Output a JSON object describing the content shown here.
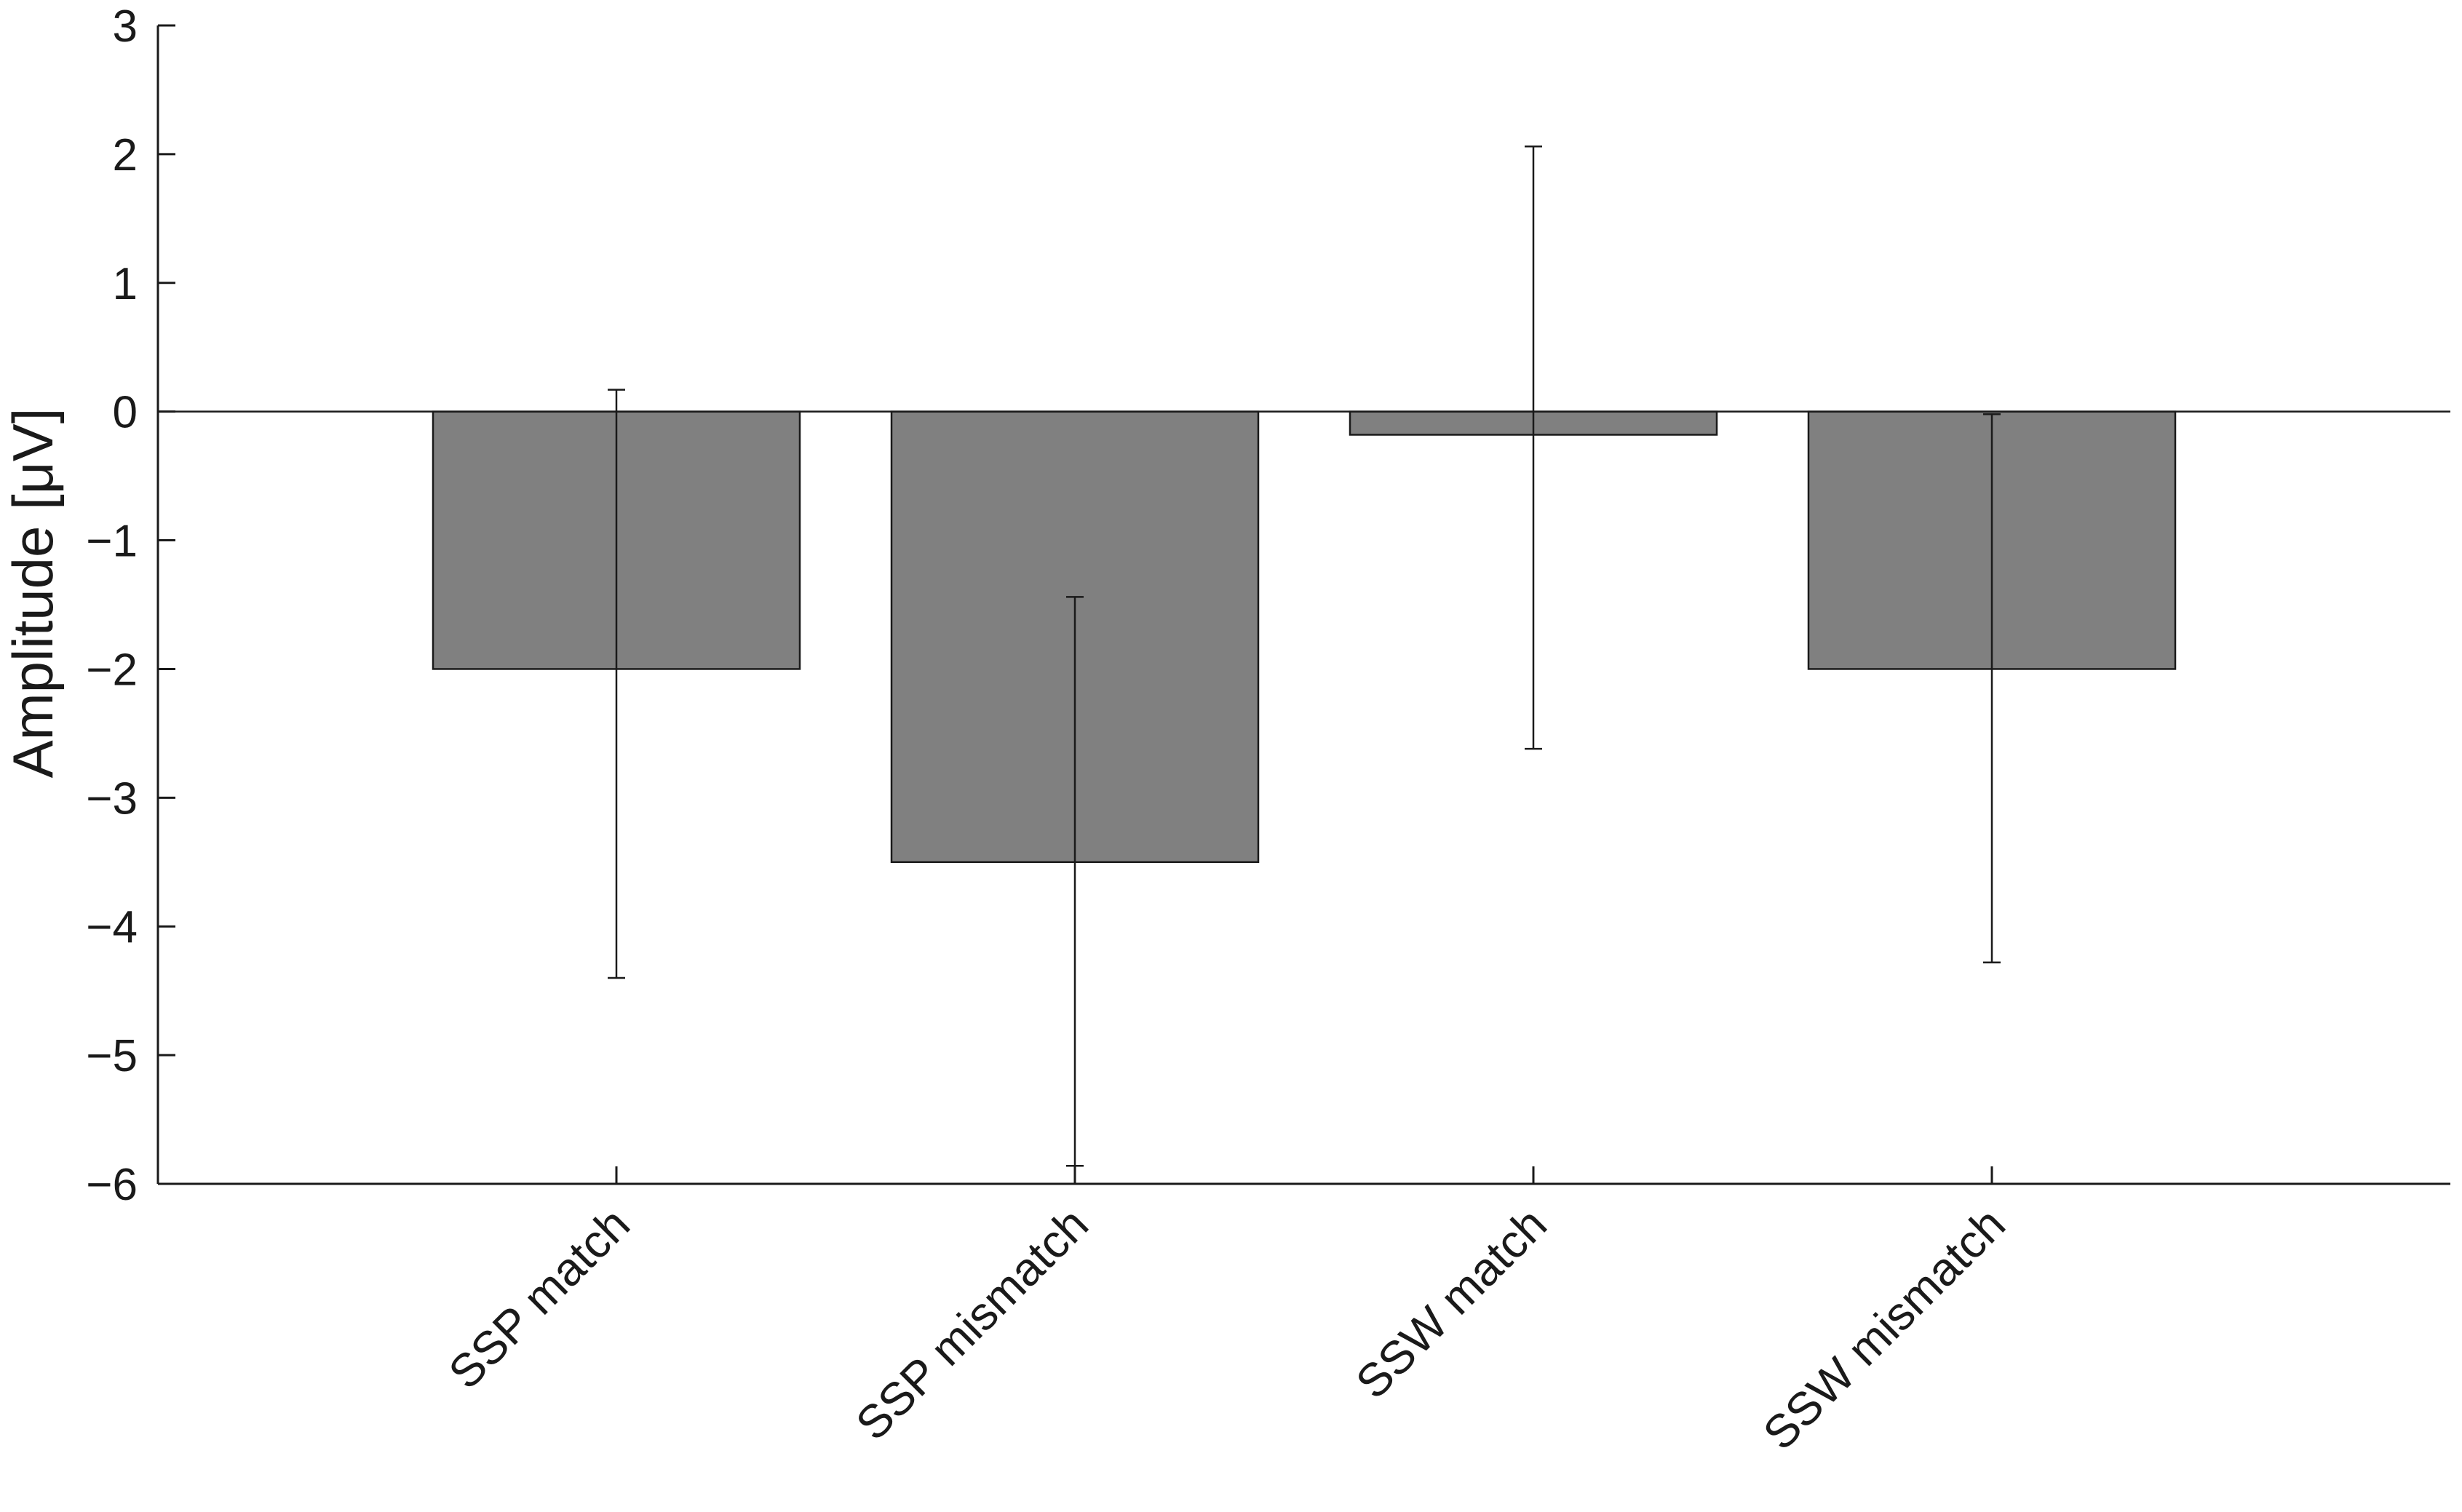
{
  "chart_data": {
    "type": "bar",
    "title": "",
    "xlabel": "",
    "ylabel": "Amplitude [μV]",
    "ylim": [
      -6,
      3
    ],
    "yticks": [
      3,
      2,
      1,
      0,
      -1,
      -2,
      -3,
      -4,
      -5,
      -6
    ],
    "ytick_labels": [
      "3",
      "2",
      "1",
      "0",
      "−1",
      "−2",
      "−3",
      "−4",
      "−5",
      "−6"
    ],
    "categories": [
      "SSP match",
      "SSP mismatch",
      "SSW match",
      "SSW mismatch"
    ],
    "values": [
      -2.0,
      -3.5,
      -0.18,
      -2.0
    ],
    "error_upper": [
      0.17,
      -1.44,
      2.06,
      -0.02
    ],
    "error_lower": [
      -4.4,
      -5.86,
      -2.62,
      -4.28
    ],
    "bar_color": "#808080",
    "error_bar_color": "#1a1a1a",
    "grid": false,
    "zero_line": true
  }
}
